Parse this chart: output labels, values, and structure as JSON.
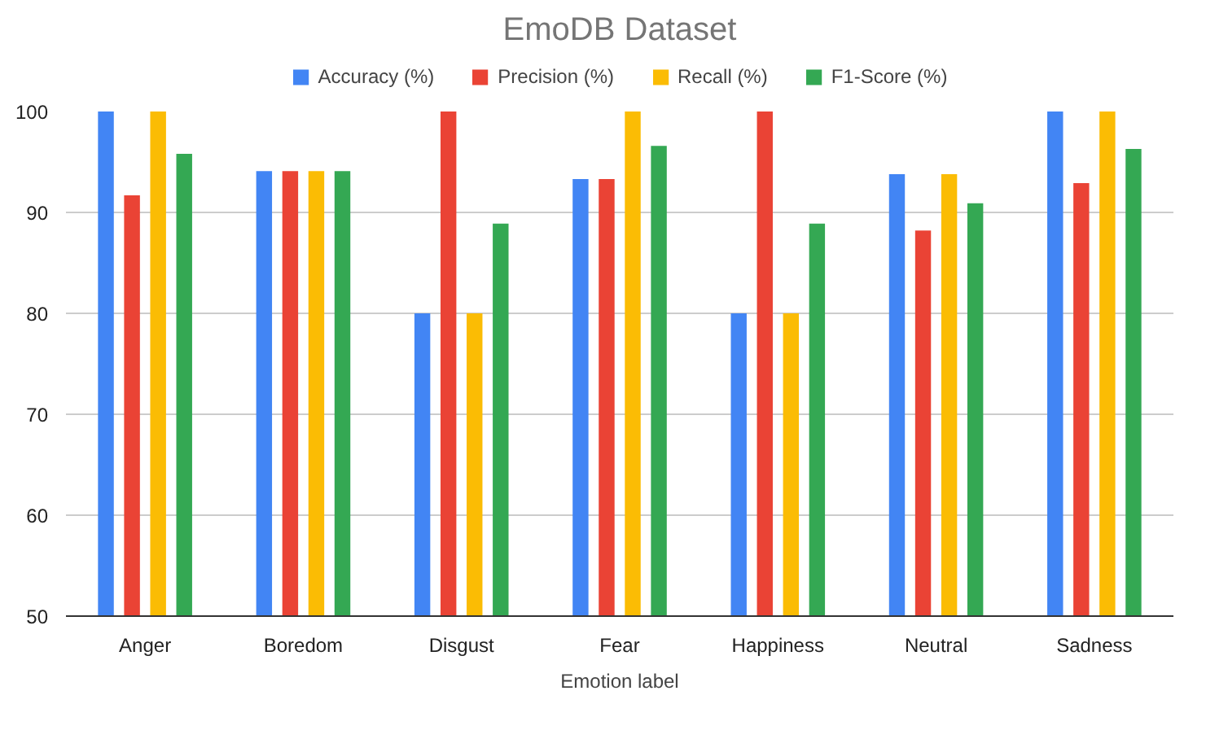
{
  "chart_data": {
    "type": "bar",
    "title": "EmoDB Dataset",
    "xlabel": "Emotion label",
    "categories": [
      "Anger",
      "Boredom",
      "Disgust",
      "Fear",
      "Happiness",
      "Neutral",
      "Sadness"
    ],
    "series": [
      {
        "name": "Accuracy (%)",
        "color": "#4285f4",
        "values": [
          100,
          94.1,
          80,
          93.3,
          80,
          93.8,
          100
        ]
      },
      {
        "name": "Precision (%)",
        "color": "#ea4335",
        "values": [
          91.7,
          94.1,
          100,
          93.3,
          100,
          88.2,
          92.9
        ]
      },
      {
        "name": "Recall (%)",
        "color": "#fbbc04",
        "values": [
          100,
          94.1,
          80,
          100,
          80,
          93.8,
          100
        ]
      },
      {
        "name": "F1-Score (%)",
        "color": "#34a853",
        "values": [
          95.8,
          94.1,
          88.9,
          96.6,
          88.9,
          90.9,
          96.3
        ]
      }
    ],
    "ylim": [
      50,
      100
    ],
    "yticks": [
      50,
      60,
      70,
      80,
      90,
      100
    ],
    "grid": "y",
    "legend": "top"
  }
}
